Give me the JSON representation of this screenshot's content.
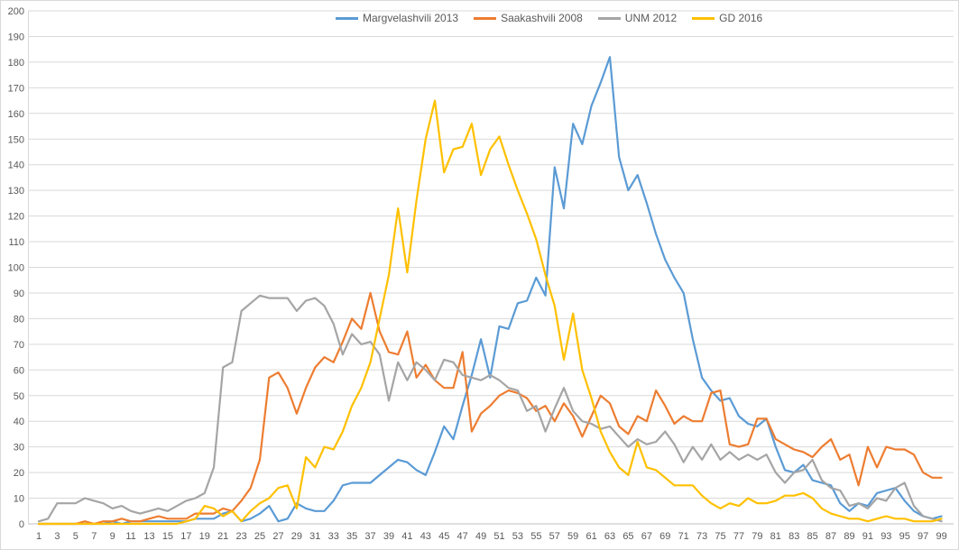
{
  "chart": {
    "background_color": "#ffffff",
    "border_color": "#d9d9d9",
    "gridline_color": "#d9d9d9",
    "axis_line_color": "#bfbfbf",
    "tick_label_color": "#595959",
    "legend_text_color": "#595959",
    "legend_position": "top-center"
  },
  "chart_data": {
    "type": "line",
    "title": "",
    "xlabel": "",
    "ylabel": "",
    "x_start": 1,
    "x_end": 99,
    "x_tick_labels": [
      "1",
      "3",
      "5",
      "7",
      "9",
      "11",
      "13",
      "15",
      "17",
      "19",
      "21",
      "23",
      "25",
      "27",
      "29",
      "31",
      "33",
      "35",
      "37",
      "39",
      "41",
      "43",
      "45",
      "47",
      "49",
      "51",
      "53",
      "55",
      "57",
      "59",
      "61",
      "63",
      "65",
      "67",
      "69",
      "71",
      "73",
      "75",
      "77",
      "79",
      "81",
      "83",
      "85",
      "87",
      "89",
      "91",
      "93",
      "95",
      "97",
      "99"
    ],
    "ylim": [
      0,
      200
    ],
    "y_tick_step": 10,
    "y_tick_labels": [
      "0",
      "10",
      "20",
      "30",
      "40",
      "50",
      "60",
      "70",
      "80",
      "90",
      "100",
      "110",
      "120",
      "130",
      "140",
      "150",
      "160",
      "170",
      "180",
      "190",
      "200"
    ],
    "grid": true,
    "legend": [
      "Margvelashvili 2013",
      "Saakashvili 2008",
      "UNM 2012",
      "GD 2016"
    ],
    "series": [
      {
        "name": "Margvelashvili 2013",
        "color": "#5b9bd5",
        "values": [
          0,
          0,
          0,
          0,
          0,
          0,
          0,
          0,
          1,
          0,
          1,
          1,
          1,
          1,
          1,
          1,
          1,
          2,
          2,
          2,
          4,
          5,
          1,
          2,
          4,
          7,
          1,
          2,
          8,
          6,
          5,
          5,
          9,
          15,
          16,
          16,
          16,
          19,
          22,
          25,
          24,
          21,
          19,
          28,
          38,
          33,
          46,
          58,
          72,
          57,
          77,
          76,
          86,
          87,
          96,
          89,
          139,
          123,
          156,
          148,
          163,
          172,
          182,
          143,
          130,
          136,
          125,
          113,
          103,
          96,
          90,
          72,
          57,
          52,
          48,
          49,
          42,
          39,
          38,
          41,
          30,
          21,
          20,
          23,
          17,
          16,
          15,
          8,
          5,
          8,
          7,
          12,
          13,
          14,
          9,
          5,
          3,
          2,
          3
        ]
      },
      {
        "name": "Saakashvili 2008",
        "color": "#ed7d31",
        "values": [
          0,
          0,
          0,
          0,
          0,
          1,
          0,
          1,
          1,
          2,
          1,
          1,
          2,
          3,
          2,
          2,
          2,
          4,
          4,
          4,
          6,
          5,
          9,
          14,
          25,
          57,
          59,
          53,
          43,
          53,
          61,
          65,
          63,
          71,
          80,
          76,
          90,
          75,
          67,
          66,
          75,
          57,
          62,
          56,
          53,
          53,
          67,
          36,
          43,
          46,
          50,
          52,
          51,
          49,
          44,
          46,
          40,
          47,
          42,
          34,
          42,
          50,
          47,
          38,
          35,
          42,
          40,
          52,
          46,
          39,
          42,
          40,
          40,
          51,
          52,
          31,
          30,
          31,
          41,
          41,
          33,
          31,
          29,
          28,
          26,
          30,
          33,
          25,
          27,
          15,
          30,
          22,
          30,
          29,
          29,
          27,
          20,
          18,
          18
        ]
      },
      {
        "name": "UNM 2012",
        "color": "#a5a5a5",
        "values": [
          1,
          2,
          8,
          8,
          8,
          10,
          9,
          8,
          6,
          7,
          5,
          4,
          5,
          6,
          5,
          7,
          9,
          10,
          12,
          22,
          61,
          63,
          83,
          86,
          89,
          88,
          88,
          88,
          83,
          87,
          88,
          85,
          78,
          66,
          74,
          70,
          71,
          66,
          48,
          63,
          56,
          63,
          60,
          56,
          64,
          63,
          58,
          57,
          56,
          58,
          56,
          53,
          52,
          44,
          46,
          36,
          45,
          53,
          44,
          40,
          39,
          37,
          38,
          34,
          30,
          33,
          31,
          32,
          36,
          31,
          24,
          30,
          25,
          31,
          25,
          28,
          25,
          27,
          25,
          27,
          20,
          16,
          20,
          21,
          25,
          17,
          14,
          13,
          7,
          8,
          6,
          10,
          9,
          14,
          16,
          7,
          3,
          2,
          1
        ]
      },
      {
        "name": "GD 2016",
        "color": "#ffc000",
        "values": [
          0,
          0,
          0,
          0,
          0,
          0,
          0,
          0,
          0,
          0,
          0,
          0,
          0,
          0,
          0,
          0,
          1,
          2,
          7,
          6,
          3,
          5,
          1,
          5,
          8,
          10,
          14,
          15,
          6,
          26,
          22,
          30,
          29,
          36,
          46,
          53,
          63,
          80,
          97,
          123,
          98,
          126,
          150,
          165,
          137,
          146,
          147,
          156,
          136,
          146,
          151,
          140,
          130,
          121,
          111,
          97,
          85,
          64,
          82,
          60,
          49,
          36,
          28,
          22,
          19,
          32,
          22,
          21,
          18,
          15,
          15,
          15,
          11,
          8,
          6,
          8,
          7,
          10,
          8,
          8,
          9,
          11,
          11,
          12,
          10,
          6,
          4,
          3,
          2,
          2,
          1,
          2,
          3,
          2,
          2,
          1,
          1,
          1,
          2
        ]
      }
    ]
  }
}
